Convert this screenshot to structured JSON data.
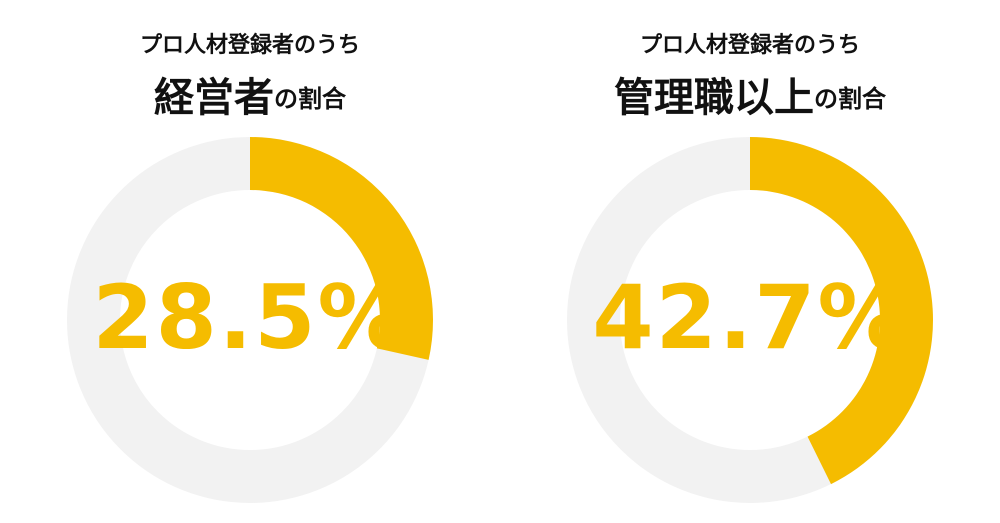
{
  "chart_data": [
    {
      "type": "donut",
      "subtitle": "プロ人材登録者のうち",
      "title": [
        "経営者",
        "の割合"
      ],
      "values": [
        28.5
      ],
      "value_labels": [
        "28.5%"
      ],
      "color": "#f5bc00",
      "track_color": "#f2f2f2"
    },
    {
      "type": "donut",
      "subtitle": "プロ人材登録者のうち",
      "title": [
        "管理職以上",
        "の割合"
      ],
      "values": [
        42.7
      ],
      "value_labels": [
        "42.7%"
      ],
      "color": "#f5bc00",
      "track_color": "#f2f2f2"
    }
  ]
}
